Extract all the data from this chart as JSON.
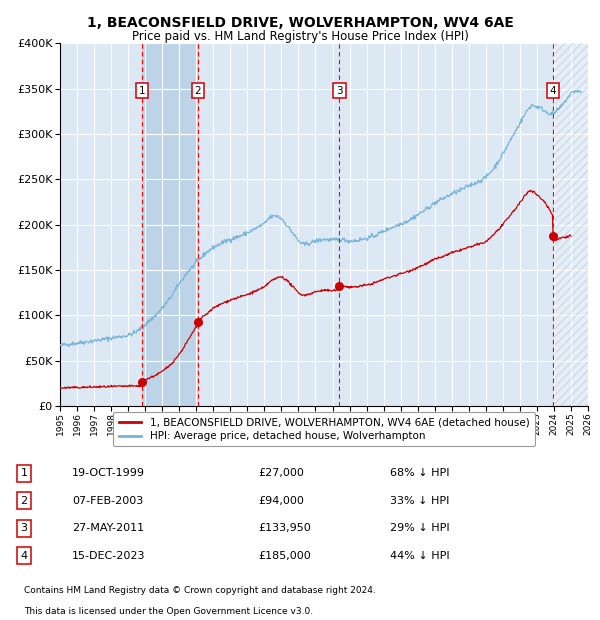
{
  "title": "1, BEACONSFIELD DRIVE, WOLVERHAMPTON, WV4 6AE",
  "subtitle": "Price paid vs. HM Land Registry's House Price Index (HPI)",
  "legend_line1": "1, BEACONSFIELD DRIVE, WOLVERHAMPTON, WV4 6AE (detached house)",
  "legend_line2": "HPI: Average price, detached house, Wolverhampton",
  "footer1": "Contains HM Land Registry data © Crown copyright and database right 2024.",
  "footer2": "This data is licensed under the Open Government Licence v3.0.",
  "purchases": [
    {
      "num": 1,
      "date": "19-OCT-1999",
      "price": 27000,
      "year": 1999.8,
      "label": "68% ↓ HPI"
    },
    {
      "num": 2,
      "date": "07-FEB-2003",
      "price": 94000,
      "year": 2003.1,
      "label": "33% ↓ HPI"
    },
    {
      "num": 3,
      "date": "27-MAY-2011",
      "price": 133950,
      "year": 2011.4,
      "label": "29% ↓ HPI"
    },
    {
      "num": 4,
      "date": "15-DEC-2023",
      "price": 185000,
      "year": 2023.95,
      "label": "44% ↓ HPI"
    }
  ],
  "hpi_color": "#7ab4d8",
  "price_color": "#cc0000",
  "background_color": "#ffffff",
  "plot_bg_color": "#dce9f5",
  "shaded_region_color": "#bdd4e8",
  "grid_color": "#ffffff",
  "ylim": [
    0,
    400000
  ],
  "xlim_start": 1995,
  "xlim_end": 2026,
  "hpi_anchors": [
    [
      1995.0,
      67000
    ],
    [
      1996.0,
      69500
    ],
    [
      1997.0,
      72000
    ],
    [
      1998.0,
      75000
    ],
    [
      1999.0,
      78000
    ],
    [
      1999.5,
      82000
    ],
    [
      2000.0,
      90000
    ],
    [
      2000.5,
      98000
    ],
    [
      2001.0,
      108000
    ],
    [
      2001.5,
      120000
    ],
    [
      2002.0,
      135000
    ],
    [
      2002.5,
      148000
    ],
    [
      2003.0,
      158000
    ],
    [
      2003.5,
      168000
    ],
    [
      2004.0,
      175000
    ],
    [
      2004.5,
      180000
    ],
    [
      2005.0,
      184000
    ],
    [
      2005.5,
      187000
    ],
    [
      2006.0,
      191000
    ],
    [
      2006.5,
      196000
    ],
    [
      2007.0,
      201000
    ],
    [
      2007.3,
      208000
    ],
    [
      2007.7,
      210000
    ],
    [
      2008.0,
      207000
    ],
    [
      2008.3,
      200000
    ],
    [
      2008.7,
      190000
    ],
    [
      2009.0,
      182000
    ],
    [
      2009.3,
      178000
    ],
    [
      2009.7,
      180000
    ],
    [
      2010.0,
      182000
    ],
    [
      2010.5,
      184000
    ],
    [
      2011.0,
      183000
    ],
    [
      2011.5,
      184000
    ],
    [
      2012.0,
      182000
    ],
    [
      2012.5,
      183000
    ],
    [
      2013.0,
      185000
    ],
    [
      2013.5,
      188000
    ],
    [
      2014.0,
      193000
    ],
    [
      2014.5,
      197000
    ],
    [
      2015.0,
      201000
    ],
    [
      2015.5,
      205000
    ],
    [
      2016.0,
      211000
    ],
    [
      2016.5,
      217000
    ],
    [
      2017.0,
      224000
    ],
    [
      2017.5,
      229000
    ],
    [
      2018.0,
      234000
    ],
    [
      2018.5,
      238000
    ],
    [
      2019.0,
      243000
    ],
    [
      2019.5,
      247000
    ],
    [
      2020.0,
      252000
    ],
    [
      2020.5,
      263000
    ],
    [
      2021.0,
      278000
    ],
    [
      2021.5,
      295000
    ],
    [
      2022.0,
      312000
    ],
    [
      2022.3,
      322000
    ],
    [
      2022.5,
      328000
    ],
    [
      2022.7,
      332000
    ],
    [
      2023.0,
      330000
    ],
    [
      2023.3,
      328000
    ],
    [
      2023.5,
      325000
    ],
    [
      2023.7,
      323000
    ],
    [
      2023.95,
      322000
    ],
    [
      2024.2,
      326000
    ],
    [
      2024.5,
      332000
    ],
    [
      2024.8,
      340000
    ],
    [
      2025.0,
      345000
    ],
    [
      2025.3,
      348000
    ],
    [
      2025.6,
      346000
    ]
  ],
  "price_anchors": [
    [
      1995.0,
      20000
    ],
    [
      1996.0,
      20500
    ],
    [
      1997.0,
      21000
    ],
    [
      1998.0,
      21500
    ],
    [
      1999.0,
      22000
    ],
    [
      1999.79,
      22200
    ],
    [
      1999.8,
      27000
    ],
    [
      2000.0,
      29000
    ],
    [
      2000.5,
      33000
    ],
    [
      2001.0,
      38000
    ],
    [
      2001.5,
      46000
    ],
    [
      2002.0,
      57000
    ],
    [
      2002.5,
      72000
    ],
    [
      2003.09,
      90000
    ],
    [
      2003.1,
      94000
    ],
    [
      2003.5,
      100000
    ],
    [
      2004.0,
      108000
    ],
    [
      2004.5,
      113000
    ],
    [
      2005.0,
      117000
    ],
    [
      2005.5,
      120000
    ],
    [
      2006.0,
      123000
    ],
    [
      2006.5,
      127000
    ],
    [
      2007.0,
      131000
    ],
    [
      2007.3,
      137000
    ],
    [
      2007.7,
      141000
    ],
    [
      2008.0,
      143000
    ],
    [
      2008.3,
      139000
    ],
    [
      2008.7,
      131000
    ],
    [
      2009.0,
      125000
    ],
    [
      2009.3,
      122000
    ],
    [
      2009.7,
      124000
    ],
    [
      2010.0,
      126000
    ],
    [
      2010.5,
      128000
    ],
    [
      2011.0,
      127000
    ],
    [
      2011.39,
      129000
    ],
    [
      2011.4,
      133950
    ],
    [
      2011.6,
      133000
    ],
    [
      2012.0,
      131000
    ],
    [
      2012.5,
      132000
    ],
    [
      2013.0,
      133500
    ],
    [
      2013.5,
      136000
    ],
    [
      2014.0,
      140000
    ],
    [
      2014.5,
      143000
    ],
    [
      2015.0,
      146000
    ],
    [
      2015.5,
      149000
    ],
    [
      2016.0,
      153000
    ],
    [
      2016.5,
      157000
    ],
    [
      2017.0,
      162000
    ],
    [
      2017.5,
      165000
    ],
    [
      2018.0,
      169000
    ],
    [
      2018.5,
      172000
    ],
    [
      2019.0,
      175000
    ],
    [
      2019.5,
      178000
    ],
    [
      2020.0,
      181000
    ],
    [
      2020.5,
      190000
    ],
    [
      2021.0,
      200000
    ],
    [
      2021.5,
      212000
    ],
    [
      2022.0,
      224000
    ],
    [
      2022.3,
      232000
    ],
    [
      2022.5,
      237000
    ],
    [
      2022.7,
      238000
    ],
    [
      2023.0,
      233000
    ],
    [
      2023.3,
      228000
    ],
    [
      2023.5,
      224000
    ],
    [
      2023.7,
      218000
    ],
    [
      2023.94,
      210000
    ],
    [
      2023.95,
      185000
    ],
    [
      2024.0,
      183000
    ],
    [
      2024.2,
      184000
    ],
    [
      2024.5,
      186000
    ],
    [
      2025.0,
      188000
    ]
  ]
}
